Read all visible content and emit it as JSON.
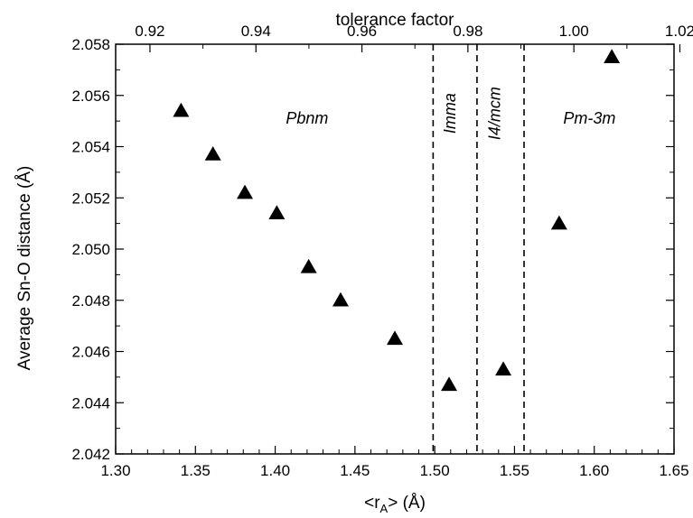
{
  "chart_data": {
    "type": "scatter",
    "title": "",
    "xlabel_prefix": "<r",
    "xlabel_sub": "A",
    "xlabel_suffix": "> (Å)",
    "ylabel": "Average Sn-O distance (Å)",
    "x2label": "tolerance factor",
    "xlim": [
      1.3,
      1.65
    ],
    "ylim": [
      2.042,
      2.058
    ],
    "x_ticks": [
      1.3,
      1.35,
      1.4,
      1.45,
      1.5,
      1.55,
      1.6,
      1.65
    ],
    "x_tick_labels": [
      "1.30",
      "1.35",
      "1.40",
      "1.45",
      "1.50",
      "1.55",
      "1.60",
      "1.65"
    ],
    "y_ticks": [
      2.042,
      2.044,
      2.046,
      2.048,
      2.05,
      2.052,
      2.054,
      2.056,
      2.058
    ],
    "y_tick_labels": [
      "2.042",
      "2.044",
      "2.046",
      "2.048",
      "2.050",
      "2.052",
      "2.054",
      "2.056",
      "2.058"
    ],
    "top_axis": {
      "ticks": [
        0.92,
        0.94,
        0.96,
        0.98,
        1.0,
        1.02
      ],
      "tick_labels": [
        "0.92",
        "0.94",
        "0.96",
        "0.98",
        "1.00",
        "1.02"
      ],
      "minor_ticks": [
        0.91,
        0.93,
        0.95,
        0.97,
        0.99,
        1.01,
        1.03
      ],
      "x_at_0.92": 1.3215,
      "x_per_unit": 3.3217
    },
    "grid": false,
    "marker": "triangle",
    "marker_color": "#000000",
    "series": [
      {
        "x": [
          1.341,
          1.361,
          1.381,
          1.401,
          1.421,
          1.441,
          1.475,
          1.509,
          1.543,
          1.578,
          1.611
        ],
        "y": [
          2.0554,
          2.0537,
          2.0522,
          2.0514,
          2.0493,
          2.048,
          2.0465,
          2.0447,
          2.0453,
          2.051,
          2.0575
        ]
      }
    ],
    "boundaries": [
      1.499,
      1.5265,
      1.556
    ],
    "boundary_style": "dashed",
    "regions": [
      {
        "label": "Pbnm",
        "x": 1.42,
        "y": 2.0549,
        "rotate": 0
      },
      {
        "label": "Imma",
        "x": 1.513,
        "y": 2.0553,
        "rotate": -90
      },
      {
        "label": "I4/mcm",
        "x": 1.541,
        "y": 2.0553,
        "rotate": -90
      },
      {
        "label": "Pm-3m",
        "x": 1.597,
        "y": 2.0549,
        "rotate": 0
      }
    ]
  }
}
